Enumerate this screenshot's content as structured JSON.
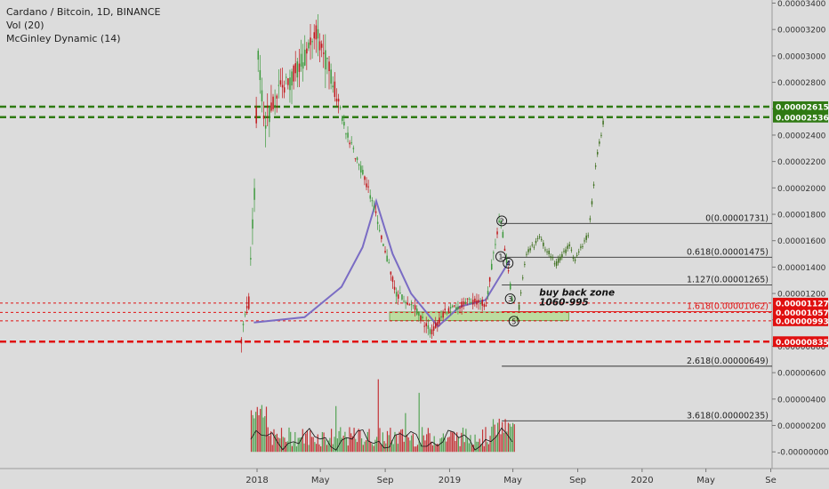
{
  "chart_data": {
    "type": "candlestick",
    "legend": [
      "Cardano / Bitcoin, 1D, BINANCE",
      "Vol (20)",
      "McGinley Dynamic (14)"
    ],
    "colors": {
      "bg": "#dcdcdc",
      "up": "#3d9a3d",
      "down": "#c0161a",
      "projection": "#3c6e1c",
      "mcginley": "#7a6cc4",
      "target_line": "#2f7a13",
      "support_line": "#e01010",
      "buy_zone": "#b9dc9a",
      "fib_line": "#333333"
    },
    "price_axis": {
      "ticks": [
        "0.00003400",
        "0.00003200",
        "0.00003000",
        "0.00002800",
        "0.00002600",
        "0.00002400",
        "0.00002200",
        "0.00002000",
        "0.00001800",
        "0.00001600",
        "0.00001400",
        "0.00001200",
        "0.00001000",
        "0.00000800",
        "0.00000600",
        "0.00000400",
        "0.00000200",
        "-0.00000000"
      ]
    },
    "time_axis": {
      "ticks": [
        "2018",
        "May",
        "Sep",
        "2019",
        "May",
        "Sep",
        "2020",
        "May",
        "Se"
      ]
    },
    "marked_prices": {
      "green": [
        "0.00002615",
        "0.00002536"
      ],
      "red": [
        "0.00001127",
        "0.00001057",
        "0.00000993",
        "0.00000835"
      ]
    },
    "fib_levels": [
      {
        "label": "0(0.00001731)",
        "value": 1.731e-05
      },
      {
        "label": "0.618(0.00001475)",
        "value": 1.475e-05
      },
      {
        "label": "1.127(0.00001265)",
        "value": 1.265e-05
      },
      {
        "label": "1.618(0.00001062)",
        "value": 1.062e-05
      },
      {
        "label": "2.618(0.00000649)",
        "value": 6.49e-06
      },
      {
        "label": "3.618(0.00000235)",
        "value": 2.35e-06
      }
    ],
    "annotation": {
      "line1": "buy back zone",
      "line2": "1060-995"
    },
    "wave_labels": [
      "2",
      "1",
      "4",
      "3",
      "5"
    ],
    "price_path": [
      {
        "t": "2017-12-01",
        "v": 9e-06
      },
      {
        "t": "2017-12-15",
        "v": 1.1e-05
      },
      {
        "t": "2017-12-26",
        "v": 2e-05
      },
      {
        "t": "2018-01-01",
        "v": 3e-05
      },
      {
        "t": "2018-01-15",
        "v": 2.5e-05
      },
      {
        "t": "2018-02-05",
        "v": 2.7e-05
      },
      {
        "t": "2018-03-01",
        "v": 2.8e-05
      },
      {
        "t": "2018-04-01",
        "v": 3e-05
      },
      {
        "t": "2018-04-20",
        "v": 3.2e-05
      },
      {
        "t": "2018-05-15",
        "v": 2.9e-05
      },
      {
        "t": "2018-06-20",
        "v": 2.4e-05
      },
      {
        "t": "2018-07-25",
        "v": 2.05e-05
      },
      {
        "t": "2018-08-20",
        "v": 1.7e-05
      },
      {
        "t": "2018-09-20",
        "v": 1.2e-05
      },
      {
        "t": "2018-10-20",
        "v": 1.12e-05
      },
      {
        "t": "2018-11-25",
        "v": 9e-06
      },
      {
        "t": "2018-12-20",
        "v": 1.05e-05
      },
      {
        "t": "2019-02-01",
        "v": 1.14e-05
      },
      {
        "t": "2019-03-10",
        "v": 1.12e-05
      },
      {
        "t": "2019-04-05",
        "v": 1.8e-05
      },
      {
        "t": "2019-04-30",
        "v": 1.12e-05
      }
    ],
    "mcginley_path": [
      {
        "t": "2017-12-26",
        "v": 9.8e-06
      },
      {
        "t": "2018-04-01",
        "v": 1.02e-05
      },
      {
        "t": "2018-06-10",
        "v": 1.25e-05
      },
      {
        "t": "2018-07-20",
        "v": 1.55e-05
      },
      {
        "t": "2018-08-15",
        "v": 1.9e-05
      },
      {
        "t": "2018-09-15",
        "v": 1.5e-05
      },
      {
        "t": "2018-10-20",
        "v": 1.2e-05
      },
      {
        "t": "2018-12-10",
        "v": 9.5e-06
      },
      {
        "t": "2019-01-20",
        "v": 1.1e-05
      },
      {
        "t": "2019-03-10",
        "v": 1.15e-05
      },
      {
        "t": "2019-04-25",
        "v": 1.45e-05
      }
    ],
    "projection_path": [
      {
        "t": "2019-05-08",
        "v": 9.9e-06
      },
      {
        "t": "2019-05-25",
        "v": 1.5e-05
      },
      {
        "t": "2019-06-20",
        "v": 1.62e-05
      },
      {
        "t": "2019-07-20",
        "v": 1.42e-05
      },
      {
        "t": "2019-08-15",
        "v": 1.56e-05
      },
      {
        "t": "2019-08-25",
        "v": 1.45e-05
      },
      {
        "t": "2019-09-20",
        "v": 1.65e-05
      },
      {
        "t": "2019-10-05",
        "v": 2.2e-05
      },
      {
        "t": "2019-10-20",
        "v": 2.54e-05
      }
    ]
  }
}
